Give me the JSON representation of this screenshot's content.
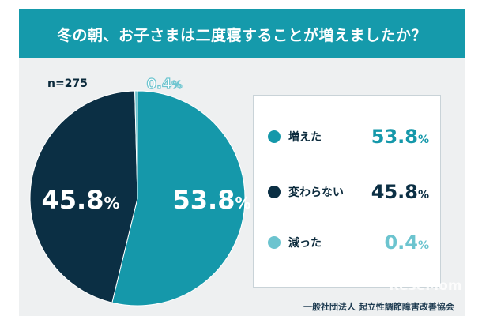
{
  "header": {
    "title": "冬の朝、お子さまは二度寝することが増えましたか？"
  },
  "sample": "n=275",
  "colors": {
    "teal": "#1598aa",
    "navy": "#0b2f44",
    "light": "#6cc4cf"
  },
  "chart_data": {
    "type": "pie",
    "slices": [
      {
        "label": "増えた",
        "value": 53.8,
        "display": "53.8",
        "color": "#1598aa"
      },
      {
        "label": "変わらない",
        "value": 45.8,
        "display": "45.8",
        "color": "#0b2f44"
      },
      {
        "label": "減った",
        "value": 0.4,
        "display": "0.4",
        "color": "#6cc4cf"
      }
    ],
    "unit": "%"
  },
  "footer": {
    "org": "一般社団法人 起立性調節障害改善協会"
  },
  "watermark": "ReseMom"
}
